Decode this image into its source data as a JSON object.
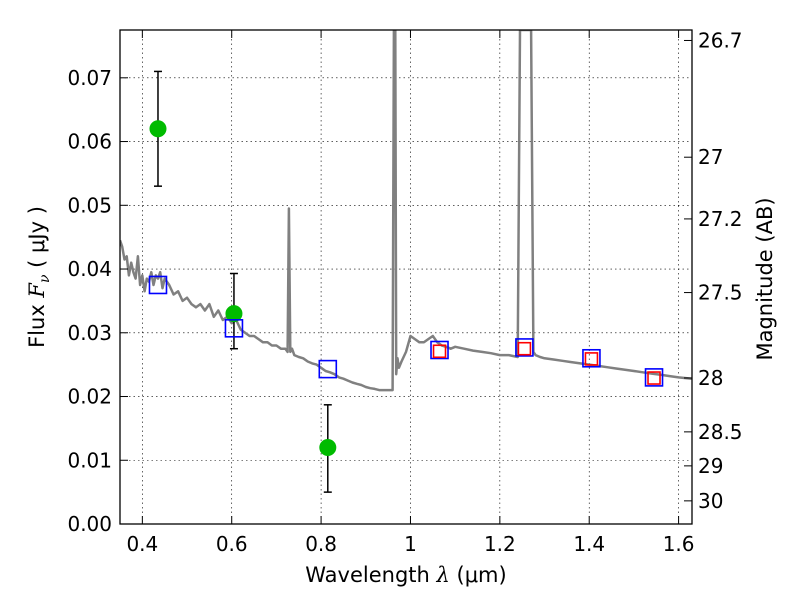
{
  "chart_data": {
    "type": "scatter",
    "title": "",
    "xlabel": {
      "prefix": "Wavelength  ",
      "symbol": "λ",
      "suffix": " (μm)"
    },
    "ylabel": {
      "prefix": "Flux  ",
      "symbol": "F",
      "subscript": "ν",
      "suffix": "  ( μJy )"
    },
    "y2label": "Magnitude (AB)",
    "xlim": [
      0.35,
      1.63
    ],
    "ylim": [
      0.0,
      0.0775
    ],
    "grid": true,
    "x_ticks": [
      {
        "v": 0.4,
        "label": "0.4"
      },
      {
        "v": 0.6,
        "label": "0.6"
      },
      {
        "v": 0.8,
        "label": "0.8"
      },
      {
        "v": 1.0,
        "label": "1"
      },
      {
        "v": 1.2,
        "label": "1.2"
      },
      {
        "v": 1.4,
        "label": "1.4"
      },
      {
        "v": 1.6,
        "label": "1.6"
      }
    ],
    "y_ticks": [
      {
        "v": 0.0,
        "label": "0.00"
      },
      {
        "v": 0.01,
        "label": "0.01"
      },
      {
        "v": 0.02,
        "label": "0.02"
      },
      {
        "v": 0.03,
        "label": "0.03"
      },
      {
        "v": 0.04,
        "label": "0.04"
      },
      {
        "v": 0.05,
        "label": "0.05"
      },
      {
        "v": 0.06,
        "label": "0.06"
      },
      {
        "v": 0.07,
        "label": "0.07"
      }
    ],
    "y2_ticks": [
      {
        "mag": 26.7,
        "label": "26.7"
      },
      {
        "mag": 27,
        "label": "27"
      },
      {
        "mag": 27.2,
        "label": "27.2"
      },
      {
        "mag": 27.5,
        "label": "27.5"
      },
      {
        "mag": 28,
        "label": "28"
      },
      {
        "mag": 28.5,
        "label": "28.5"
      },
      {
        "mag": 29,
        "label": "29"
      },
      {
        "mag": 30,
        "label": "30"
      }
    ],
    "series": [
      {
        "kind": "line",
        "color": "#808080",
        "x": [
          0.35,
          0.355,
          0.36,
          0.365,
          0.37,
          0.375,
          0.38,
          0.385,
          0.39,
          0.395,
          0.4,
          0.405,
          0.41,
          0.415,
          0.42,
          0.425,
          0.43,
          0.435,
          0.44,
          0.445,
          0.45,
          0.46,
          0.47,
          0.48,
          0.49,
          0.5,
          0.51,
          0.52,
          0.53,
          0.54,
          0.55,
          0.56,
          0.57,
          0.58,
          0.59,
          0.6,
          0.61,
          0.62,
          0.63,
          0.64,
          0.65,
          0.66,
          0.67,
          0.68,
          0.69,
          0.7,
          0.71,
          0.72,
          0.725,
          0.728,
          0.731,
          0.735,
          0.74,
          0.75,
          0.76,
          0.77,
          0.78,
          0.79,
          0.8,
          0.81,
          0.82,
          0.83,
          0.84,
          0.85,
          0.86,
          0.87,
          0.88,
          0.89,
          0.9,
          0.91,
          0.92,
          0.93,
          0.94,
          0.95,
          0.96,
          0.963,
          0.966,
          0.968,
          0.971,
          0.974,
          0.98,
          0.99,
          1.0,
          1.01,
          1.02,
          1.03,
          1.04,
          1.05,
          1.06,
          1.07,
          1.08,
          1.09,
          1.1,
          1.12,
          1.14,
          1.16,
          1.18,
          1.2,
          1.22,
          1.24,
          1.245,
          1.25,
          1.26,
          1.27,
          1.275,
          1.28,
          1.29,
          1.3,
          1.32,
          1.34,
          1.36,
          1.38,
          1.4,
          1.42,
          1.44,
          1.46,
          1.48,
          1.5,
          1.52,
          1.54,
          1.56,
          1.58,
          1.6,
          1.63
        ],
        "y": [
          0.0445,
          0.0435,
          0.0415,
          0.042,
          0.039,
          0.041,
          0.0395,
          0.0385,
          0.042,
          0.0375,
          0.039,
          0.0365,
          0.0385,
          0.038,
          0.0395,
          0.0375,
          0.039,
          0.0385,
          0.0395,
          0.037,
          0.0385,
          0.0375,
          0.036,
          0.0365,
          0.035,
          0.0355,
          0.0345,
          0.034,
          0.0345,
          0.0335,
          0.0345,
          0.0325,
          0.0335,
          0.032,
          0.0325,
          0.0315,
          0.032,
          0.0305,
          0.03,
          0.0295,
          0.0295,
          0.029,
          0.0285,
          0.0285,
          0.028,
          0.028,
          0.0275,
          0.0275,
          0.027,
          0.0495,
          0.027,
          0.0275,
          0.0265,
          0.0262,
          0.026,
          0.0255,
          0.0252,
          0.025,
          0.0245,
          0.024,
          0.0238,
          0.0235,
          0.023,
          0.0228,
          0.0225,
          0.0222,
          0.022,
          0.0218,
          0.0215,
          0.0213,
          0.0212,
          0.021,
          0.021,
          0.021,
          0.021,
          0.0775,
          0.0775,
          0.0235,
          0.026,
          0.0245,
          0.0255,
          0.027,
          0.0295,
          0.029,
          0.0285,
          0.0285,
          0.029,
          0.0295,
          0.0285,
          0.028,
          0.0278,
          0.0275,
          0.0278,
          0.0275,
          0.0272,
          0.027,
          0.0268,
          0.0265,
          0.0265,
          0.0262,
          0.0775,
          0.0775,
          0.0775,
          0.0775,
          0.027,
          0.0265,
          0.0262,
          0.026,
          0.0258,
          0.0256,
          0.0254,
          0.0252,
          0.025,
          0.0248,
          0.0246,
          0.0244,
          0.0242,
          0.024,
          0.0238,
          0.0236,
          0.0234,
          0.0232,
          0.023,
          0.0228
        ]
      },
      {
        "kind": "errorbar",
        "color": "#00bb00",
        "x": [
          0.435,
          0.605,
          0.815
        ],
        "y": [
          0.062,
          0.033,
          0.012
        ],
        "yerr_low": [
          0.053,
          0.0275,
          0.005
        ],
        "yerr_high": [
          0.071,
          0.0393,
          0.0187
        ]
      },
      {
        "kind": "square",
        "color": "#0000ff",
        "size": "large",
        "x": [
          0.435,
          0.605,
          0.815,
          1.065,
          1.255,
          1.405,
          1.545
        ],
        "y": [
          0.0375,
          0.0307,
          0.0243,
          0.0273,
          0.0277,
          0.026,
          0.023
        ]
      },
      {
        "kind": "square",
        "color": "#ff0000",
        "size": "small",
        "x": [
          1.065,
          1.255,
          1.405,
          1.545
        ],
        "y": [
          0.0271,
          0.0275,
          0.0259,
          0.0229
        ]
      }
    ]
  }
}
